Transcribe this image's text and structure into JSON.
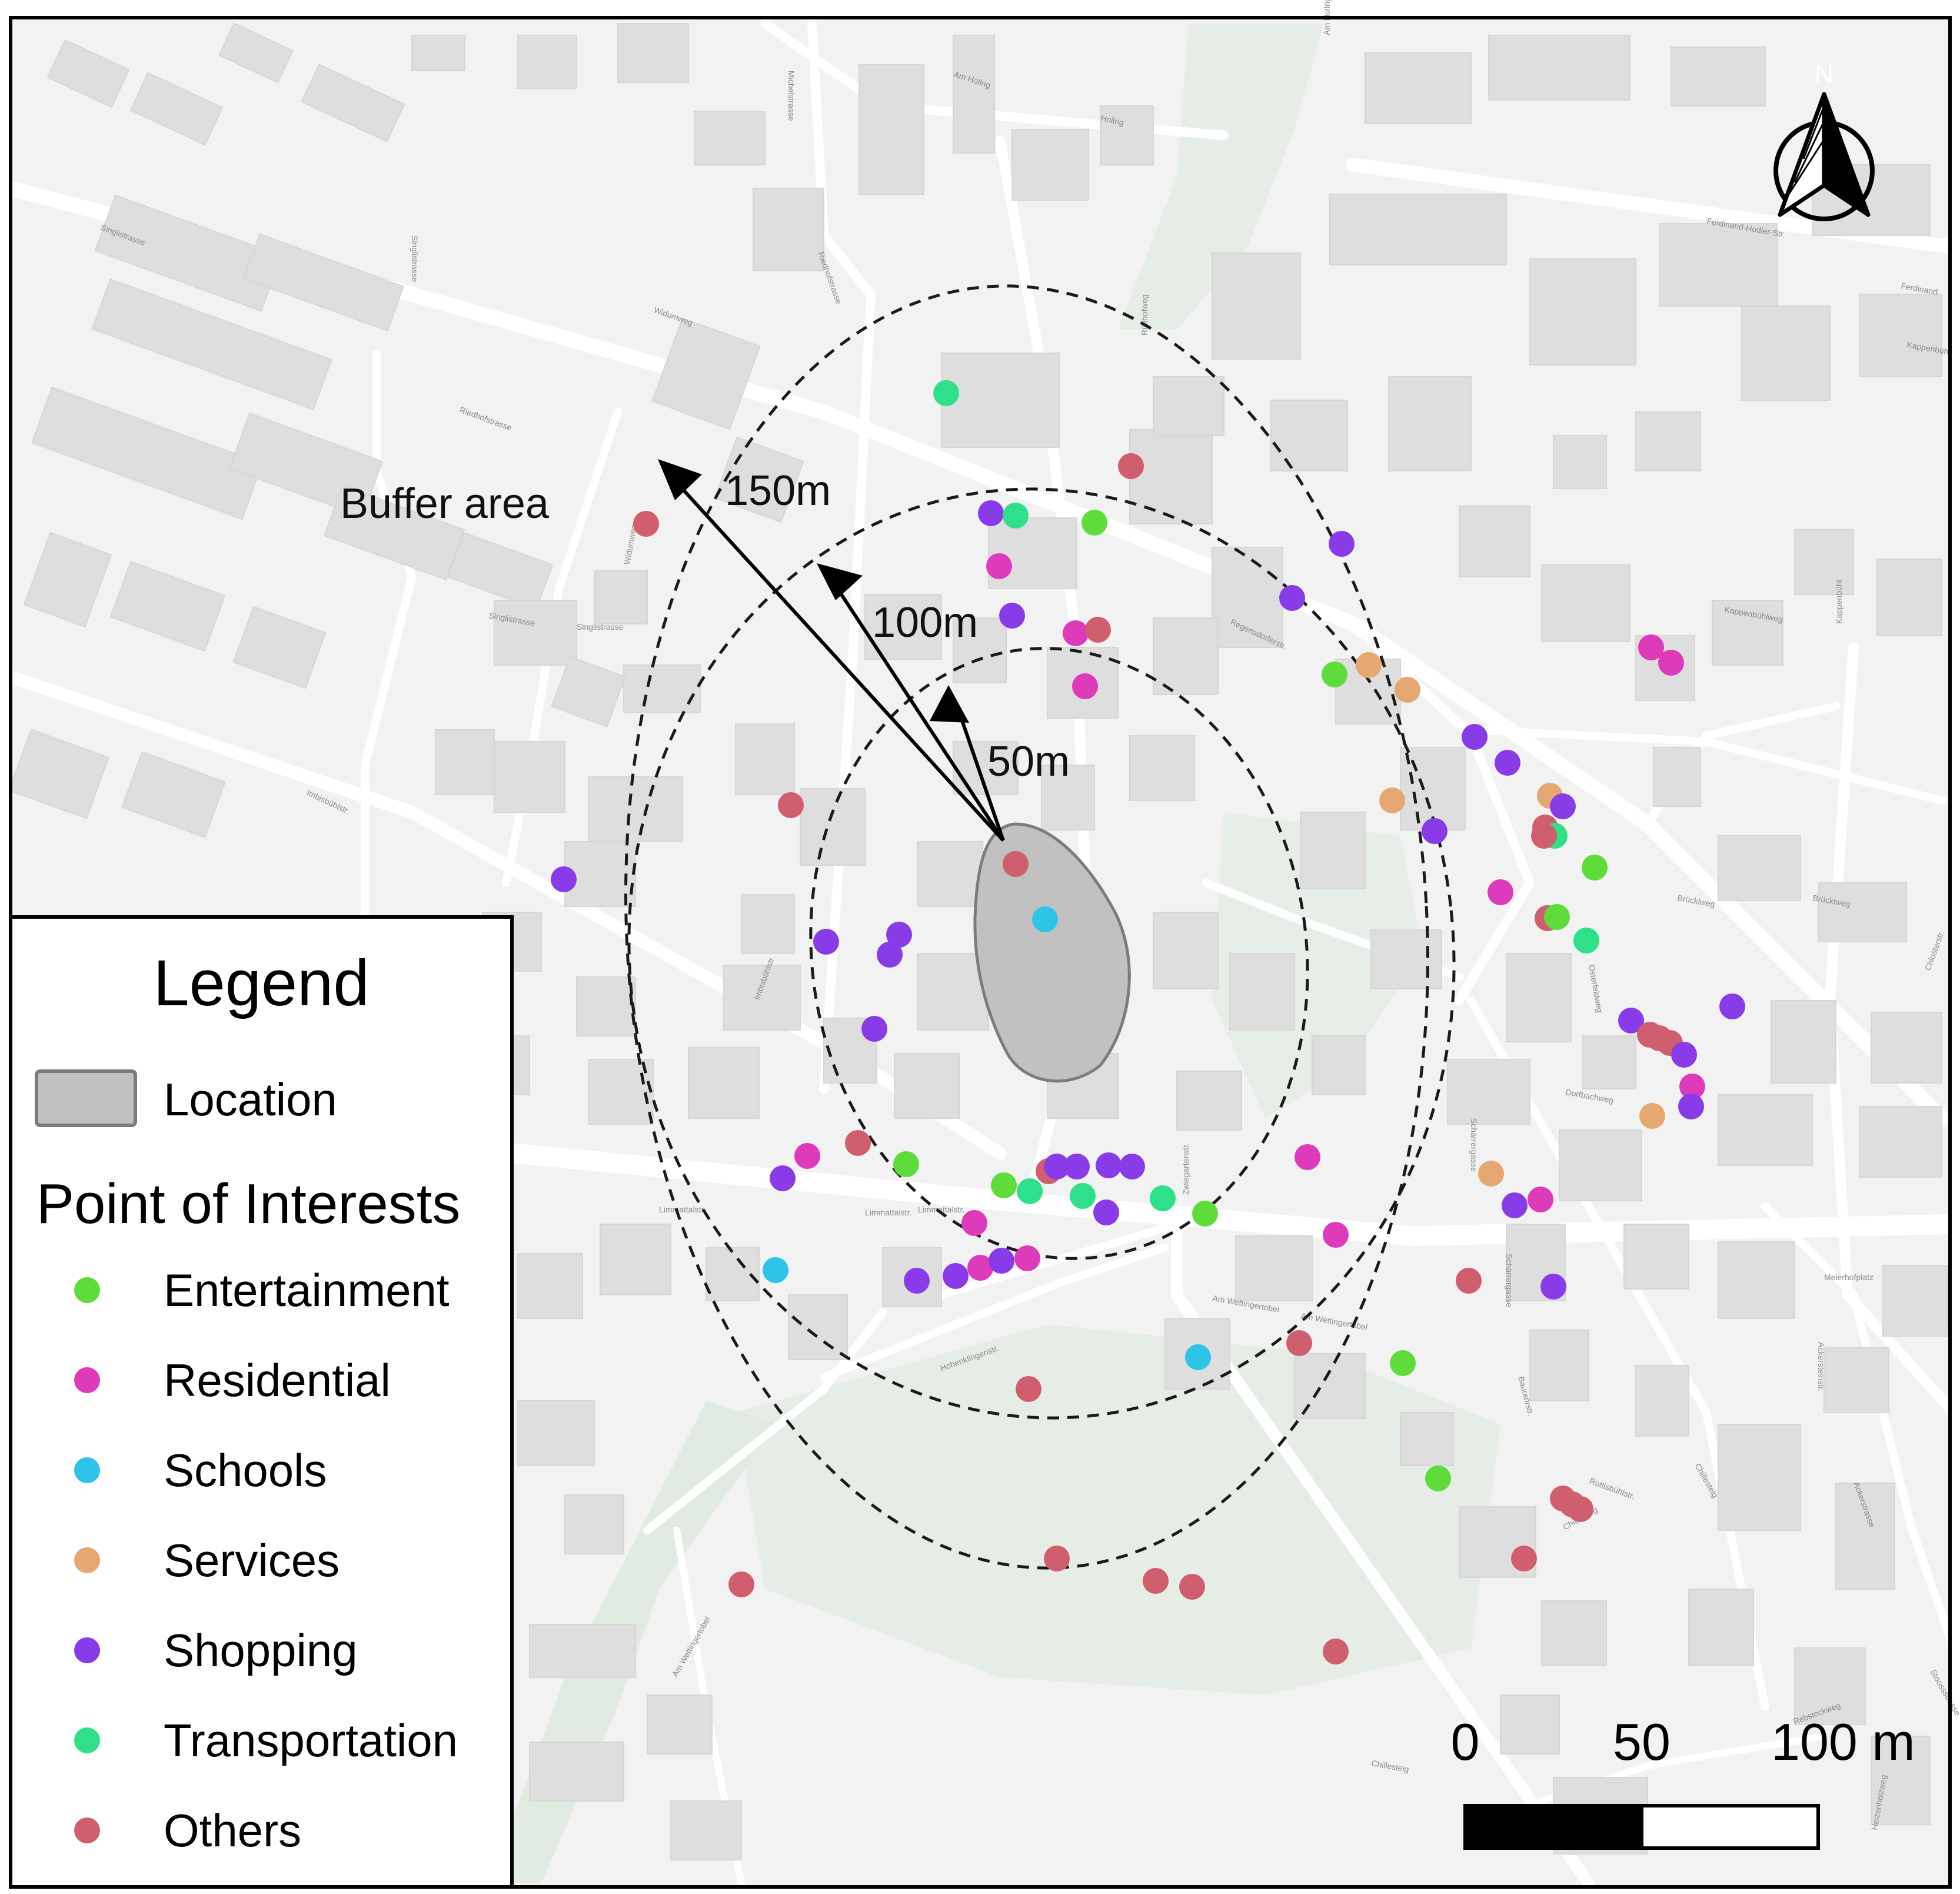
{
  "labels": {
    "buffer_area": "Buffer area",
    "ring_150": "150m",
    "ring_100": "100m",
    "ring_50": "50m",
    "north": "N"
  },
  "legend": {
    "title": "Legend",
    "location_label": "Location",
    "poi_title": "Point of Interests",
    "categories": [
      {
        "key": "entertainment",
        "label": "Entertainment",
        "color": "#5fdc3b"
      },
      {
        "key": "residential",
        "label": "Residential",
        "color": "#dd3bb9"
      },
      {
        "key": "schools",
        "label": "Schools",
        "color": "#2ec4e8"
      },
      {
        "key": "services",
        "label": "Services",
        "color": "#e6a872"
      },
      {
        "key": "shopping",
        "label": "Shopping",
        "color": "#8a3be8"
      },
      {
        "key": "transportation",
        "label": "Transportation",
        "color": "#2ee08a"
      },
      {
        "key": "others",
        "label": "Others",
        "color": "#cf5f6f"
      }
    ]
  },
  "scalebar": {
    "label_0": "0",
    "label_50": "50",
    "label_100": "100 m"
  },
  "streets": [
    "Am Hollrig",
    "Hollrig",
    "Michelstrasse",
    "Am Hollrig",
    "Ferdinand-Hodler-Str.",
    "Ferdinand",
    "Kappenbühl",
    "Singlistrasse",
    "Singlistrasse",
    "Riedhofstrasse",
    "Widumweg",
    "Riedhofstrasse",
    "Rütihofweg",
    "Regensdorferstr.",
    "Kappenbühlweg",
    "Kappenbühl",
    "Singlistrasse",
    "Widumweg",
    "Singlistrasse",
    "Imbisbühlstr.",
    "Imbisbühlstr.",
    "Limmattalstr.",
    "Limmattalstr.",
    "Limmattalstr.",
    "Zwiegartenstr.",
    "Am Wettingertobel",
    "Am Wettingertobel",
    "Hohenklingenstr.",
    "Meierhofplatz",
    "Ackersteinstr.",
    "Chlosterstr.",
    "Chillesteig",
    "Baurenrstr.",
    "Ackerstrasse",
    "Am Wettingertobel",
    "Chillesteig",
    "Brücklweg",
    "Brücklweg",
    "Dorfbachweg",
    "Schärrergasse",
    "Osterfeldweg",
    "Schärrergasse",
    "Heizenholzweg",
    "Stoossstrasse",
    "Rebstockweg",
    "Chillestieg",
    "Rüttisbühlstr."
  ]
}
